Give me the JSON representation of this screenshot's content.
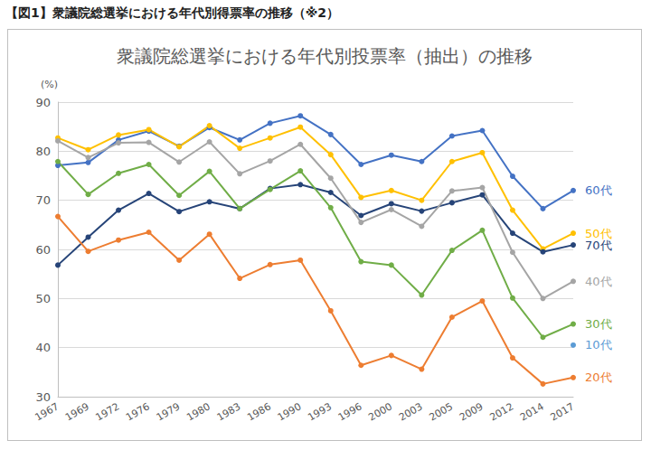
{
  "header": "【図1】衆議院総選挙における年代別得票率の推移（※2）",
  "chart_data": {
    "type": "line",
    "title": "衆議院総選挙における年代別投票率（抽出）の推移",
    "ylabel": "(%)",
    "categories": [
      "1967",
      "1969",
      "1972",
      "1976",
      "1979",
      "1980",
      "1983",
      "1986",
      "1990",
      "1993",
      "1996",
      "2000",
      "2003",
      "2005",
      "2009",
      "2012",
      "2014",
      "2017"
    ],
    "ylim": [
      30,
      90
    ],
    "yticks": [
      30,
      40,
      50,
      60,
      70,
      80,
      90
    ],
    "grid": true,
    "marker": "circle",
    "series": [
      {
        "name": "60代",
        "color": "#4472c4",
        "values": [
          77.1,
          77.7,
          82.3,
          84.1,
          81.0,
          84.8,
          82.3,
          85.7,
          87.2,
          83.4,
          77.3,
          79.2,
          77.9,
          83.1,
          84.2,
          74.9,
          68.3,
          72.0
        ]
      },
      {
        "name": "50代",
        "color": "#ffc000",
        "values": [
          82.7,
          80.3,
          83.3,
          84.4,
          80.9,
          85.2,
          80.6,
          82.7,
          84.9,
          79.3,
          70.6,
          72.0,
          70.0,
          77.9,
          79.7,
          68.0,
          60.1,
          63.3
        ]
      },
      {
        "name": "70代",
        "color": "#264478",
        "values": [
          56.8,
          62.5,
          68.0,
          71.4,
          67.7,
          69.7,
          68.3,
          72.4,
          73.2,
          71.6,
          66.9,
          69.3,
          67.8,
          69.5,
          71.1,
          63.3,
          59.5,
          60.9
        ]
      },
      {
        "name": "40代",
        "color": "#a5a5a5",
        "values": [
          82.1,
          78.7,
          81.7,
          81.8,
          77.8,
          81.9,
          75.4,
          78.0,
          81.4,
          74.5,
          65.5,
          68.1,
          64.7,
          71.9,
          72.6,
          59.4,
          50.0,
          53.5
        ]
      },
      {
        "name": "30代",
        "color": "#70ad47",
        "values": [
          77.9,
          71.2,
          75.5,
          77.3,
          71.0,
          75.9,
          68.3,
          72.2,
          76.0,
          68.5,
          57.5,
          56.8,
          50.7,
          59.8,
          63.9,
          50.1,
          42.1,
          44.8
        ]
      },
      {
        "name": "10代",
        "color": "#5b9bd5",
        "values": [
          null,
          null,
          null,
          null,
          null,
          null,
          null,
          null,
          null,
          null,
          null,
          null,
          null,
          null,
          null,
          null,
          null,
          40.5
        ]
      },
      {
        "name": "20代",
        "color": "#ed7d31",
        "values": [
          66.7,
          59.6,
          61.9,
          63.5,
          57.8,
          63.1,
          54.1,
          56.9,
          57.8,
          47.5,
          36.4,
          38.4,
          35.6,
          46.2,
          49.5,
          37.9,
          32.6,
          33.9
        ]
      }
    ]
  }
}
